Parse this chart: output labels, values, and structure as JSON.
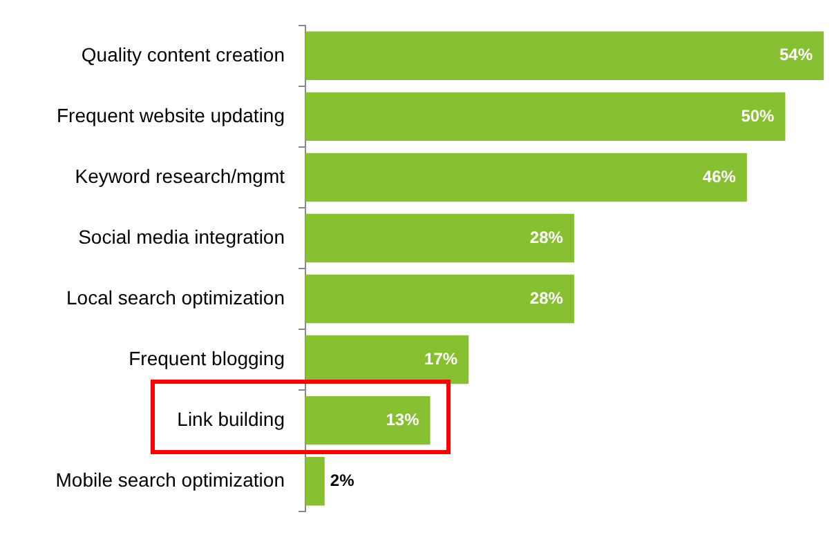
{
  "chart_data": {
    "type": "bar",
    "orientation": "horizontal",
    "categories": [
      "Quality content creation",
      "Frequent website updating",
      "Keyword research/mgmt",
      "Social media integration",
      "Local search optimization",
      "Frequent blogging",
      "Link building",
      "Mobile search optimization"
    ],
    "values": [
      54,
      50,
      46,
      28,
      28,
      17,
      13,
      2
    ],
    "value_labels": [
      "54%",
      "50%",
      "46%",
      "28%",
      "28%",
      "17%",
      "13%",
      "2%"
    ],
    "color": "#86bf2f",
    "legend": false
  }
}
